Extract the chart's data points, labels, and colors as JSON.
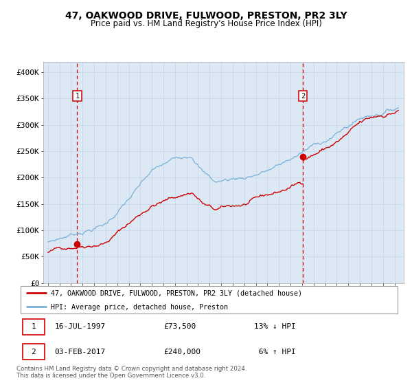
{
  "title": "47, OAKWOOD DRIVE, FULWOOD, PRESTON, PR2 3LY",
  "subtitle": "Price paid vs. HM Land Registry's House Price Index (HPI)",
  "bg_color": "#dce9f5",
  "line1_color": "#cc0000",
  "line2_color": "#7ab0d4",
  "grid_color": "#c8d8e8",
  "sale1_date_num": 1997.54,
  "sale1_price": 73500,
  "sale2_date_num": 2017.09,
  "sale2_price": 240000,
  "legend1": "47, OAKWOOD DRIVE, FULWOOD, PRESTON, PR2 3LY (detached house)",
  "legend2": "HPI: Average price, detached house, Preston",
  "footer": "Contains HM Land Registry data © Crown copyright and database right 2024.\nThis data is licensed under the Open Government Licence v3.0.",
  "yticks": [
    0,
    50000,
    100000,
    150000,
    200000,
    250000,
    300000,
    350000,
    400000
  ],
  "ylabels": [
    "£0",
    "£50K",
    "£100K",
    "£150K",
    "£200K",
    "£250K",
    "£300K",
    "£350K",
    "£400K"
  ],
  "xmin": 1994.6,
  "xmax": 2025.8,
  "ymin": 0,
  "ymax": 420000
}
